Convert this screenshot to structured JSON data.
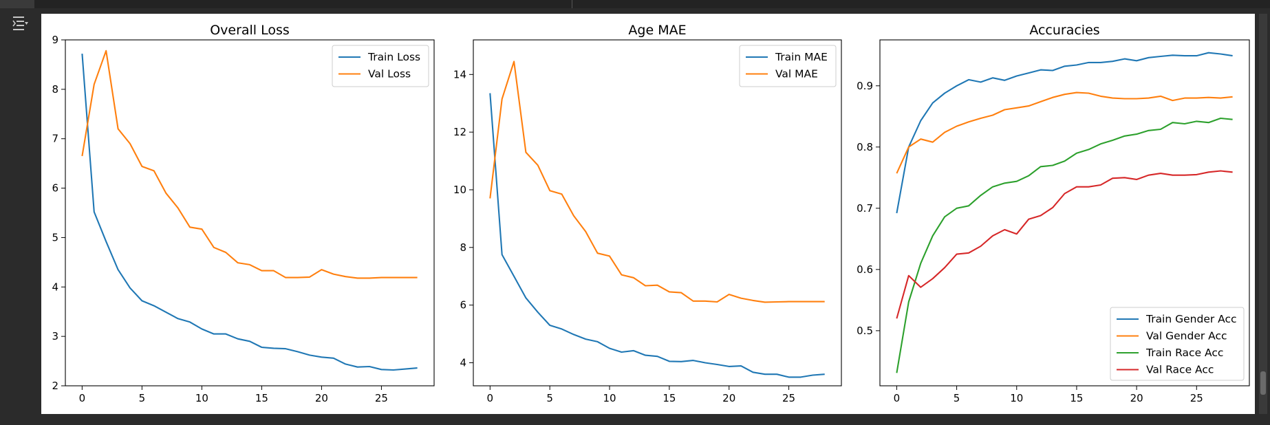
{
  "colors": {
    "blue": "#1f77b4",
    "orange": "#ff7f0e",
    "green": "#2ca02c",
    "red": "#d62728"
  },
  "icons": {
    "output_toggle": "output-settings-icon"
  },
  "chart_data": [
    {
      "type": "line",
      "title": "Overall Loss",
      "xlabel": "",
      "ylabel": "",
      "xlim": [
        -1.4,
        29.4
      ],
      "ylim": [
        2.0,
        9.0
      ],
      "xticks": [
        0,
        5,
        10,
        15,
        20,
        25
      ],
      "yticks": [
        2,
        3,
        4,
        5,
        6,
        7,
        8,
        9
      ],
      "legend_position": "top-right",
      "grid": false,
      "x": [
        0,
        1,
        2,
        3,
        4,
        5,
        6,
        7,
        8,
        9,
        10,
        11,
        12,
        13,
        14,
        15,
        16,
        17,
        18,
        19,
        20,
        21,
        22,
        23,
        24,
        25,
        26,
        27,
        28
      ],
      "series": [
        {
          "name": "Train Loss",
          "color": "#1f77b4",
          "values": [
            8.72,
            5.52,
            4.92,
            4.35,
            3.98,
            3.72,
            3.62,
            3.49,
            3.36,
            3.29,
            3.15,
            3.05,
            3.05,
            2.95,
            2.9,
            2.78,
            2.76,
            2.75,
            2.69,
            2.62,
            2.58,
            2.56,
            2.44,
            2.38,
            2.39,
            2.33,
            2.32,
            2.34,
            2.36
          ]
        },
        {
          "name": "Val Loss",
          "color": "#ff7f0e",
          "values": [
            6.65,
            8.1,
            8.78,
            7.2,
            6.9,
            6.44,
            6.35,
            5.9,
            5.6,
            5.21,
            5.17,
            4.8,
            4.7,
            4.49,
            4.45,
            4.33,
            4.33,
            4.19,
            4.19,
            4.2,
            4.35,
            4.26,
            4.21,
            4.18,
            4.18,
            4.19,
            4.19,
            4.19,
            4.19
          ]
        }
      ]
    },
    {
      "type": "line",
      "title": "Age MAE",
      "xlabel": "",
      "ylabel": "",
      "xlim": [
        -1.4,
        29.4
      ],
      "ylim": [
        3.2,
        15.2
      ],
      "xticks": [
        0,
        5,
        10,
        15,
        20,
        25
      ],
      "yticks": [
        4,
        6,
        8,
        10,
        12,
        14
      ],
      "legend_position": "top-right",
      "grid": false,
      "x": [
        0,
        1,
        2,
        3,
        4,
        5,
        6,
        7,
        8,
        9,
        10,
        11,
        12,
        13,
        14,
        15,
        16,
        17,
        18,
        19,
        20,
        21,
        22,
        23,
        24,
        25,
        26,
        27,
        28
      ],
      "series": [
        {
          "name": "Train MAE",
          "color": "#1f77b4",
          "values": [
            13.35,
            7.75,
            7.0,
            6.25,
            5.75,
            5.3,
            5.17,
            4.98,
            4.82,
            4.73,
            4.5,
            4.37,
            4.42,
            4.26,
            4.22,
            4.05,
            4.04,
            4.08,
            4.0,
            3.94,
            3.87,
            3.89,
            3.67,
            3.6,
            3.6,
            3.5,
            3.5,
            3.57,
            3.6
          ]
        },
        {
          "name": "Val MAE",
          "color": "#ff7f0e",
          "values": [
            9.7,
            13.15,
            14.45,
            11.3,
            10.85,
            9.97,
            9.85,
            9.1,
            8.55,
            7.8,
            7.7,
            7.05,
            6.95,
            6.67,
            6.69,
            6.46,
            6.43,
            6.14,
            6.14,
            6.11,
            6.37,
            6.24,
            6.16,
            6.1,
            6.11,
            6.12,
            6.12,
            6.12,
            6.12
          ]
        }
      ]
    },
    {
      "type": "line",
      "title": "Accuracies",
      "xlabel": "",
      "ylabel": "",
      "xlim": [
        -1.4,
        29.4
      ],
      "ylim": [
        0.41,
        0.975
      ],
      "xticks": [
        0,
        5,
        10,
        15,
        20,
        25
      ],
      "yticks": [
        0.5,
        0.6,
        0.7,
        0.8,
        0.9
      ],
      "legend_position": "bottom-right",
      "grid": false,
      "x": [
        0,
        1,
        2,
        3,
        4,
        5,
        6,
        7,
        8,
        9,
        10,
        11,
        12,
        13,
        14,
        15,
        16,
        17,
        18,
        19,
        20,
        21,
        22,
        23,
        24,
        25,
        26,
        27,
        28
      ],
      "series": [
        {
          "name": "Train Gender Acc",
          "color": "#1f77b4",
          "values": [
            0.692,
            0.8,
            0.843,
            0.872,
            0.888,
            0.9,
            0.91,
            0.906,
            0.913,
            0.909,
            0.916,
            0.921,
            0.926,
            0.925,
            0.932,
            0.934,
            0.938,
            0.938,
            0.94,
            0.944,
            0.941,
            0.946,
            0.948,
            0.95,
            0.949,
            0.949,
            0.954,
            0.952,
            0.949
          ]
        },
        {
          "name": "Val Gender Acc",
          "color": "#ff7f0e",
          "values": [
            0.757,
            0.8,
            0.813,
            0.808,
            0.824,
            0.834,
            0.841,
            0.847,
            0.852,
            0.861,
            0.864,
            0.867,
            0.874,
            0.881,
            0.886,
            0.889,
            0.888,
            0.883,
            0.88,
            0.879,
            0.879,
            0.88,
            0.883,
            0.876,
            0.88,
            0.88,
            0.881,
            0.88,
            0.882
          ]
        },
        {
          "name": "Train Race Acc",
          "color": "#2ca02c",
          "values": [
            0.431,
            0.547,
            0.61,
            0.655,
            0.686,
            0.7,
            0.704,
            0.721,
            0.735,
            0.741,
            0.744,
            0.753,
            0.768,
            0.77,
            0.777,
            0.79,
            0.796,
            0.805,
            0.811,
            0.818,
            0.821,
            0.827,
            0.829,
            0.84,
            0.838,
            0.842,
            0.84,
            0.847,
            0.845
          ]
        },
        {
          "name": "Val Race Acc",
          "color": "#d62728",
          "values": [
            0.52,
            0.59,
            0.571,
            0.585,
            0.603,
            0.625,
            0.627,
            0.638,
            0.655,
            0.665,
            0.658,
            0.682,
            0.688,
            0.701,
            0.724,
            0.735,
            0.735,
            0.738,
            0.749,
            0.75,
            0.747,
            0.754,
            0.757,
            0.754,
            0.754,
            0.755,
            0.759,
            0.761,
            0.759
          ]
        }
      ]
    }
  ]
}
